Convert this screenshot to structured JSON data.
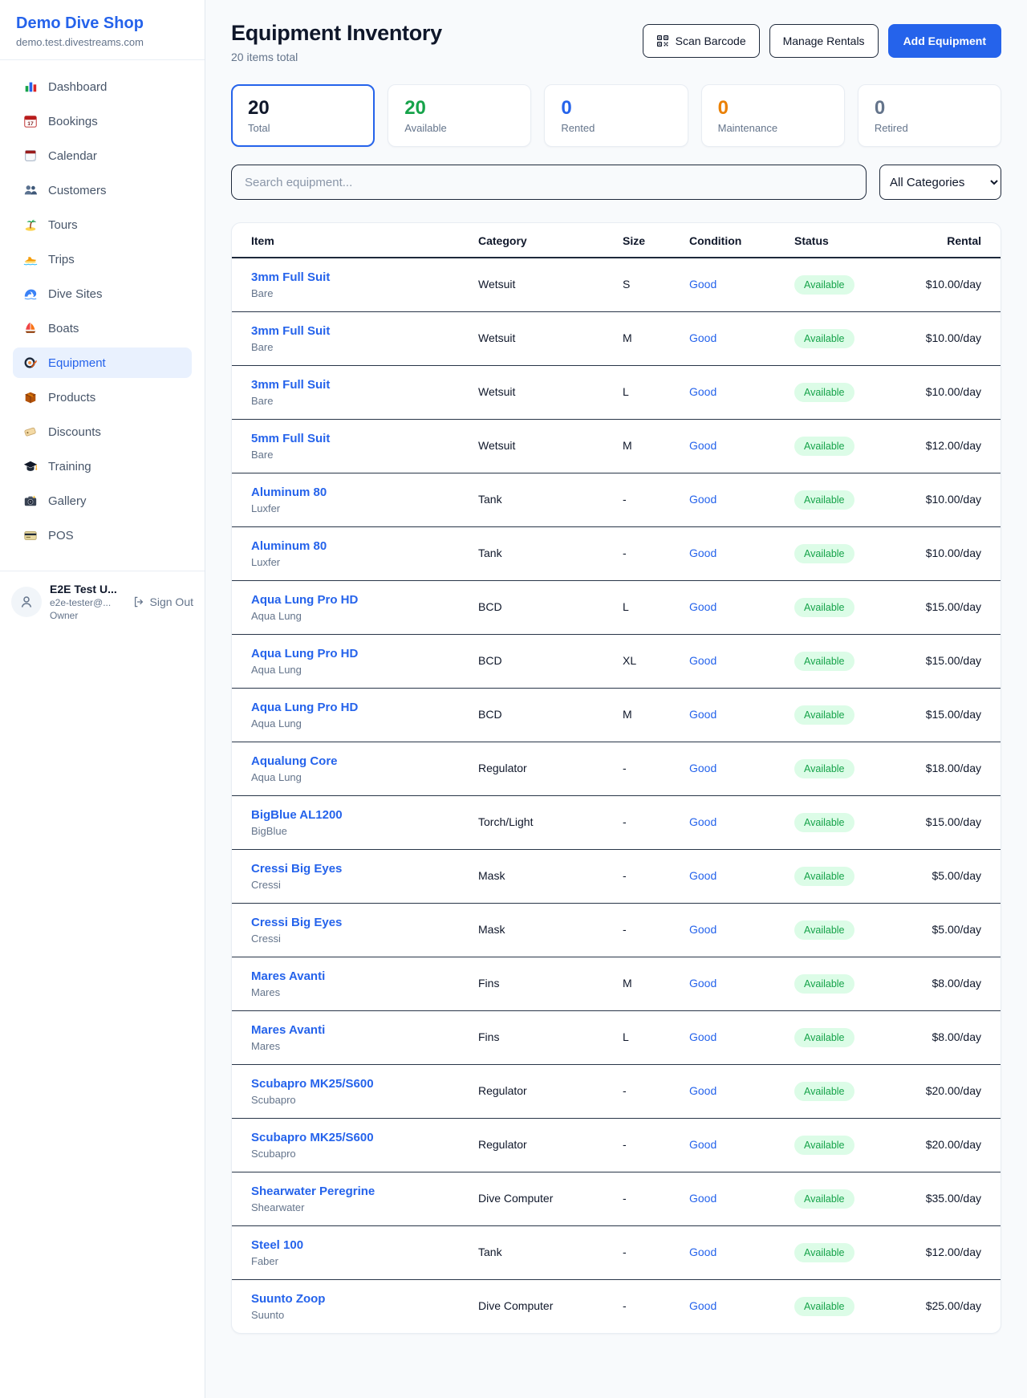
{
  "sidebar": {
    "brand": {
      "name": "Demo Dive Shop",
      "domain": "demo.test.divestreams.com"
    },
    "nav": [
      {
        "label": "Dashboard",
        "icon": "bar-chart",
        "active": false
      },
      {
        "label": "Bookings",
        "icon": "calendar",
        "active": false
      },
      {
        "label": "Calendar",
        "icon": "tear-calendar",
        "active": false
      },
      {
        "label": "Customers",
        "icon": "people",
        "active": false
      },
      {
        "label": "Tours",
        "icon": "palm-island",
        "active": false
      },
      {
        "label": "Trips",
        "icon": "speedboat",
        "active": false
      },
      {
        "label": "Dive Sites",
        "icon": "wave",
        "active": false
      },
      {
        "label": "Boats",
        "icon": "sailboat",
        "active": false
      },
      {
        "label": "Equipment",
        "icon": "dive-mask",
        "active": true
      },
      {
        "label": "Products",
        "icon": "package",
        "active": false
      },
      {
        "label": "Discounts",
        "icon": "tag",
        "active": false
      },
      {
        "label": "Training",
        "icon": "graduation-cap",
        "active": false
      },
      {
        "label": "Gallery",
        "icon": "camera",
        "active": false
      },
      {
        "label": "POS",
        "icon": "credit-card",
        "active": false
      }
    ],
    "user": {
      "name": "E2E Test U...",
      "email": "e2e-tester@...",
      "role": "Owner",
      "sign_out_label": "Sign Out"
    }
  },
  "header": {
    "title": "Equipment Inventory",
    "subtitle": "20 items total",
    "scan_button": "Scan Barcode",
    "manage_button": "Manage Rentals",
    "add_button": "Add Equipment"
  },
  "stats": [
    {
      "value": "20",
      "label": "Total",
      "color": "#0f172a",
      "selected": true
    },
    {
      "value": "20",
      "label": "Available",
      "color": "#16a34a",
      "selected": false
    },
    {
      "value": "0",
      "label": "Rented",
      "color": "#2563eb",
      "selected": false
    },
    {
      "value": "0",
      "label": "Maintenance",
      "color": "#ea8005",
      "selected": false
    },
    {
      "value": "0",
      "label": "Retired",
      "color": "#64748b",
      "selected": false
    }
  ],
  "filters": {
    "search_placeholder": "Search equipment...",
    "category_selected": "All Categories"
  },
  "table": {
    "columns": [
      "Item",
      "Category",
      "Size",
      "Condition",
      "Status",
      "Rental"
    ],
    "rows": [
      {
        "name": "3mm Full Suit",
        "brand": "Bare",
        "category": "Wetsuit",
        "size": "S",
        "condition": "Good",
        "status": "Available",
        "rental": "$10.00/day"
      },
      {
        "name": "3mm Full Suit",
        "brand": "Bare",
        "category": "Wetsuit",
        "size": "M",
        "condition": "Good",
        "status": "Available",
        "rental": "$10.00/day"
      },
      {
        "name": "3mm Full Suit",
        "brand": "Bare",
        "category": "Wetsuit",
        "size": "L",
        "condition": "Good",
        "status": "Available",
        "rental": "$10.00/day"
      },
      {
        "name": "5mm Full Suit",
        "brand": "Bare",
        "category": "Wetsuit",
        "size": "M",
        "condition": "Good",
        "status": "Available",
        "rental": "$12.00/day"
      },
      {
        "name": "Aluminum 80",
        "brand": "Luxfer",
        "category": "Tank",
        "size": "-",
        "condition": "Good",
        "status": "Available",
        "rental": "$10.00/day"
      },
      {
        "name": "Aluminum 80",
        "brand": "Luxfer",
        "category": "Tank",
        "size": "-",
        "condition": "Good",
        "status": "Available",
        "rental": "$10.00/day"
      },
      {
        "name": "Aqua Lung Pro HD",
        "brand": "Aqua Lung",
        "category": "BCD",
        "size": "L",
        "condition": "Good",
        "status": "Available",
        "rental": "$15.00/day"
      },
      {
        "name": "Aqua Lung Pro HD",
        "brand": "Aqua Lung",
        "category": "BCD",
        "size": "XL",
        "condition": "Good",
        "status": "Available",
        "rental": "$15.00/day"
      },
      {
        "name": "Aqua Lung Pro HD",
        "brand": "Aqua Lung",
        "category": "BCD",
        "size": "M",
        "condition": "Good",
        "status": "Available",
        "rental": "$15.00/day"
      },
      {
        "name": "Aqualung Core",
        "brand": "Aqua Lung",
        "category": "Regulator",
        "size": "-",
        "condition": "Good",
        "status": "Available",
        "rental": "$18.00/day"
      },
      {
        "name": "BigBlue AL1200",
        "brand": "BigBlue",
        "category": "Torch/Light",
        "size": "-",
        "condition": "Good",
        "status": "Available",
        "rental": "$15.00/day"
      },
      {
        "name": "Cressi Big Eyes",
        "brand": "Cressi",
        "category": "Mask",
        "size": "-",
        "condition": "Good",
        "status": "Available",
        "rental": "$5.00/day"
      },
      {
        "name": "Cressi Big Eyes",
        "brand": "Cressi",
        "category": "Mask",
        "size": "-",
        "condition": "Good",
        "status": "Available",
        "rental": "$5.00/day"
      },
      {
        "name": "Mares Avanti",
        "brand": "Mares",
        "category": "Fins",
        "size": "M",
        "condition": "Good",
        "status": "Available",
        "rental": "$8.00/day"
      },
      {
        "name": "Mares Avanti",
        "brand": "Mares",
        "category": "Fins",
        "size": "L",
        "condition": "Good",
        "status": "Available",
        "rental": "$8.00/day"
      },
      {
        "name": "Scubapro MK25/S600",
        "brand": "Scubapro",
        "category": "Regulator",
        "size": "-",
        "condition": "Good",
        "status": "Available",
        "rental": "$20.00/day"
      },
      {
        "name": "Scubapro MK25/S600",
        "brand": "Scubapro",
        "category": "Regulator",
        "size": "-",
        "condition": "Good",
        "status": "Available",
        "rental": "$20.00/day"
      },
      {
        "name": "Shearwater Peregrine",
        "brand": "Shearwater",
        "category": "Dive Computer",
        "size": "-",
        "condition": "Good",
        "status": "Available",
        "rental": "$35.00/day"
      },
      {
        "name": "Steel 100",
        "brand": "Faber",
        "category": "Tank",
        "size": "-",
        "condition": "Good",
        "status": "Available",
        "rental": "$12.00/day"
      },
      {
        "name": "Suunto Zoop",
        "brand": "Suunto",
        "category": "Dive Computer",
        "size": "-",
        "condition": "Good",
        "status": "Available",
        "rental": "$25.00/day"
      }
    ],
    "status_badge": {
      "bg": "#dcfce7",
      "text": "#16a34a"
    }
  }
}
